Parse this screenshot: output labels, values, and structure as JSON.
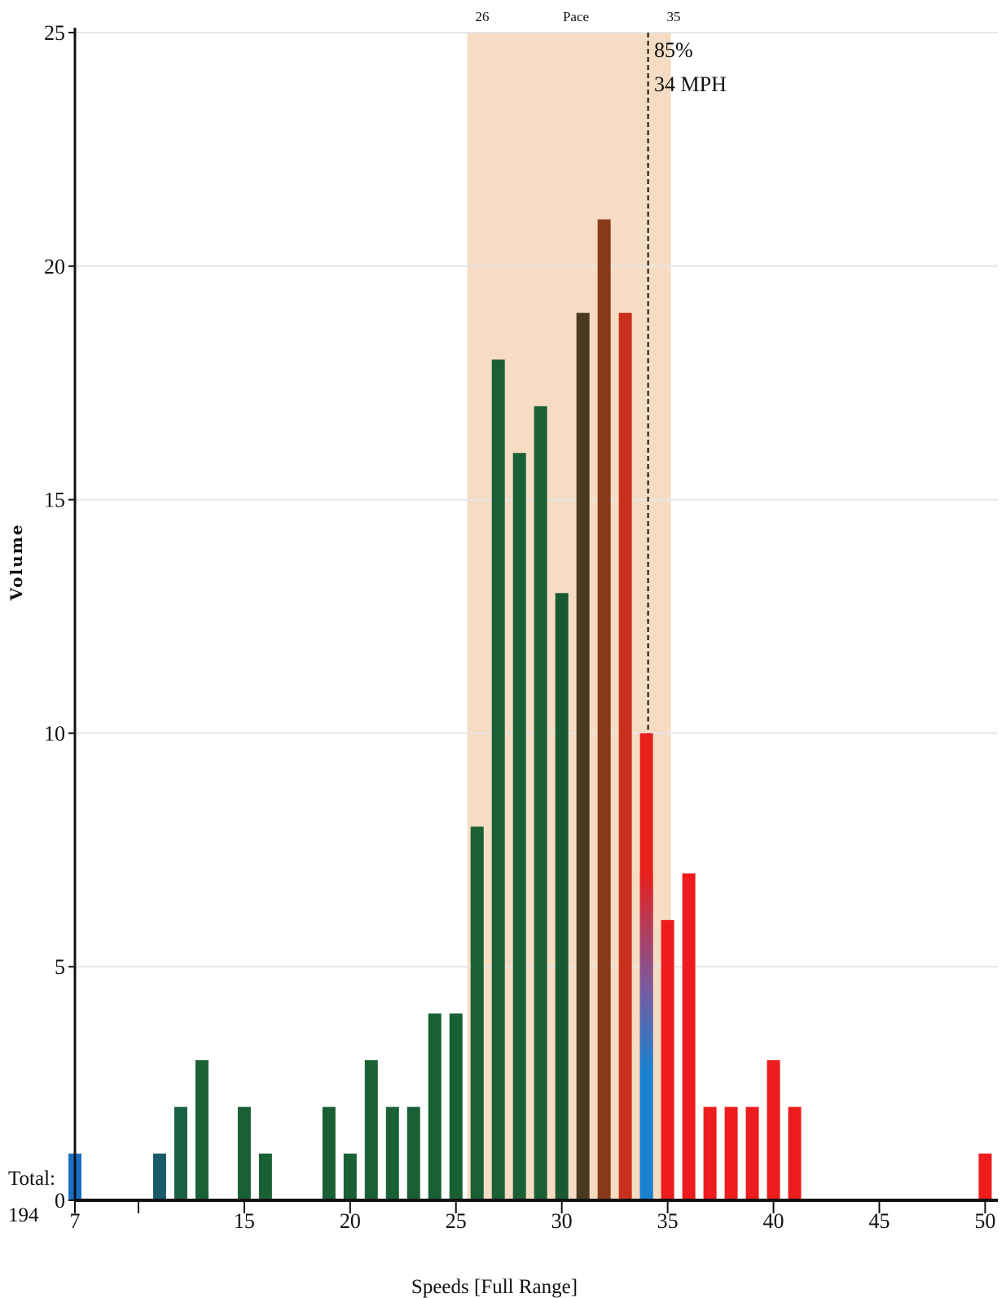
{
  "chart_data": {
    "type": "bar",
    "xlabel": "Speeds [Full Range]",
    "ylabel": "Volume",
    "xlim": [
      7,
      50.6
    ],
    "ylim": [
      0,
      25
    ],
    "x_ticks": [
      7,
      10,
      15,
      20,
      25,
      30,
      35,
      40,
      45,
      50
    ],
    "x_tick_labels": [
      "7",
      "",
      "15",
      "20",
      "25",
      "30",
      "35",
      "40",
      "45",
      "50"
    ],
    "y_ticks": [
      0,
      5,
      10,
      15,
      20,
      25
    ],
    "grid": "horizontal",
    "bars": [
      {
        "x": 7,
        "value": 1,
        "color": "#1a6fc4"
      },
      {
        "x": 11,
        "value": 1,
        "color": "#195b6b"
      },
      {
        "x": 12,
        "value": 2,
        "color": "#1a6045"
      },
      {
        "x": 13,
        "value": 3,
        "color": "#1a6035"
      },
      {
        "x": 15,
        "value": 2,
        "color": "#1a6035"
      },
      {
        "x": 16,
        "value": 1,
        "color": "#1a6035"
      },
      {
        "x": 19,
        "value": 2,
        "color": "#1a6035"
      },
      {
        "x": 20,
        "value": 1,
        "color": "#1a6035"
      },
      {
        "x": 21,
        "value": 3,
        "color": "#1a6035"
      },
      {
        "x": 22,
        "value": 2,
        "color": "#1a6035"
      },
      {
        "x": 23,
        "value": 2,
        "color": "#1a6035"
      },
      {
        "x": 24,
        "value": 4,
        "color": "#1a6035"
      },
      {
        "x": 25,
        "value": 4,
        "color": "#1a6035"
      },
      {
        "x": 26,
        "value": 8,
        "color": "#1a6035"
      },
      {
        "x": 27,
        "value": 18,
        "color": "#1a6035"
      },
      {
        "x": 28,
        "value": 16,
        "color": "#1a6035"
      },
      {
        "x": 29,
        "value": 17,
        "color": "#1a6035"
      },
      {
        "x": 30,
        "value": 13,
        "color": "#1a5a32"
      },
      {
        "x": 31,
        "value": 19,
        "color": "#4a3a20"
      },
      {
        "x": 32,
        "value": 21,
        "color": "#8a3a1a"
      },
      {
        "x": 33,
        "value": 19,
        "color": "#c8301c"
      },
      {
        "x": 34,
        "value": 10,
        "color": "#e8201c"
      },
      {
        "x": 35,
        "value": 6,
        "color": "#ee1c1c"
      },
      {
        "x": 36,
        "value": 7,
        "color": "#ee1c1c"
      },
      {
        "x": 37,
        "value": 2,
        "color": "#ee1c1c"
      },
      {
        "x": 38,
        "value": 2,
        "color": "#ee1c1c"
      },
      {
        "x": 39,
        "value": 2,
        "color": "#ee1c1c"
      },
      {
        "x": 40,
        "value": 3,
        "color": "#ee1c1c"
      },
      {
        "x": 41,
        "value": 2,
        "color": "#ee1c1c"
      },
      {
        "x": 50,
        "value": 1,
        "color": "#ee1c1c"
      }
    ],
    "blue_segment_on_34": {
      "value": 4,
      "color": "#1a82d2"
    },
    "pace_band": {
      "from": 26,
      "to": 35,
      "label_from": "26",
      "label_mid": "Pace",
      "label_to": "35",
      "color": "#f5dcc3"
    },
    "percentile_marker": {
      "x": 34,
      "label_pct": "85%",
      "label_speed": "34 MPH"
    },
    "total": {
      "label": "Total:",
      "value": "194"
    }
  }
}
